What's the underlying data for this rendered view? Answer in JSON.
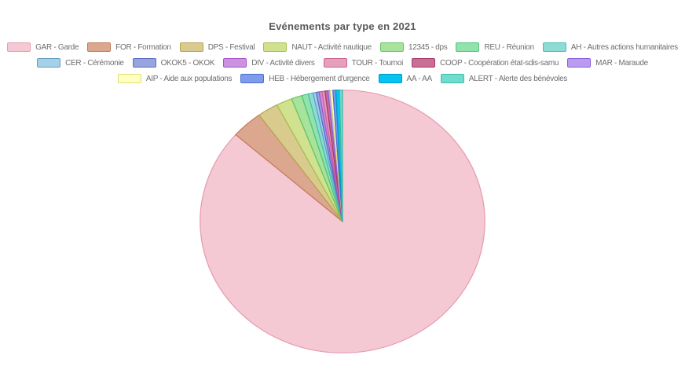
{
  "chart_data": {
    "type": "pie",
    "title": "Evénements par type en 2021",
    "title_color": "#595959",
    "legend_position": "top",
    "legend_text_color": "#6e6e6e",
    "legend_wrap_rows": [
      7,
      6,
      4
    ],
    "start_angle_deg": 0,
    "direction": "clockwise",
    "unit": "percent",
    "slices": [
      {
        "code": "GAR",
        "label": "GAR - Garde",
        "value": 86.5,
        "color": "#f5c9d4",
        "border_color": "#e59db2"
      },
      {
        "code": "FOR",
        "label": "FOR - Formation",
        "value": 3.55,
        "color": "#dca78f",
        "border_color": "#c17a58"
      },
      {
        "code": "DPS",
        "label": "DPS - Festival",
        "value": 2.35,
        "color": "#d9cb8e",
        "border_color": "#b5a351"
      },
      {
        "code": "NAUT",
        "label": "NAUT - Activité nautique",
        "value": 1.8,
        "color": "#d0e190",
        "border_color": "#a6bf4f"
      },
      {
        "code": "12345",
        "label": "12345 - dps",
        "value": 1.2,
        "color": "#a8e39c",
        "border_color": "#67c463"
      },
      {
        "code": "REU",
        "label": "REU - Réunion",
        "value": 0.75,
        "color": "#92e2ac",
        "border_color": "#4fc47e"
      },
      {
        "code": "AH",
        "label": "AH - Autres actions humanitaires",
        "value": 0.55,
        "color": "#8edbd4",
        "border_color": "#48bdb4"
      },
      {
        "code": "CER",
        "label": "CER - Cérémonie",
        "value": 0.36,
        "color": "#a6d0e6",
        "border_color": "#609fc8"
      },
      {
        "code": "OKOK5",
        "label": "OKOK5 - OKOK",
        "value": 0.33,
        "color": "#98a5dd",
        "border_color": "#5a6cc6"
      },
      {
        "code": "DIV",
        "label": "DIV - Activité divers",
        "value": 0.33,
        "color": "#cb92e0",
        "border_color": "#a953c9"
      },
      {
        "code": "TOUR",
        "label": "TOUR - Tournoi",
        "value": 0.33,
        "color": "#e5a0bd",
        "border_color": "#cd6390"
      },
      {
        "code": "COOP",
        "label": "COOP - Coopération état-sdis-samu",
        "value": 0.33,
        "color": "#ca6e96",
        "border_color": "#a53a68"
      },
      {
        "code": "MAR",
        "label": "MAR - Maraude",
        "value": 0.28,
        "color": "#b99cef",
        "border_color": "#8c5ce0"
      },
      {
        "code": "AIP",
        "label": "AIP - Aide aux populations",
        "value": 0.28,
        "color": "#ffffc2",
        "border_color": "#dede74"
      },
      {
        "code": "HEB",
        "label": "HEB - Hébergement d'urgence",
        "value": 0.33,
        "color": "#7f9cea",
        "border_color": "#4a6cd6"
      },
      {
        "code": "AA",
        "label": "AA - AA",
        "value": 0.42,
        "color": "#06c3f2",
        "border_color": "#0099c4"
      },
      {
        "code": "ALERT",
        "label": "ALERT - Alerte des bénévoles",
        "value": 0.33,
        "color": "#6fdccd",
        "border_color": "#3ebdaa"
      }
    ]
  }
}
